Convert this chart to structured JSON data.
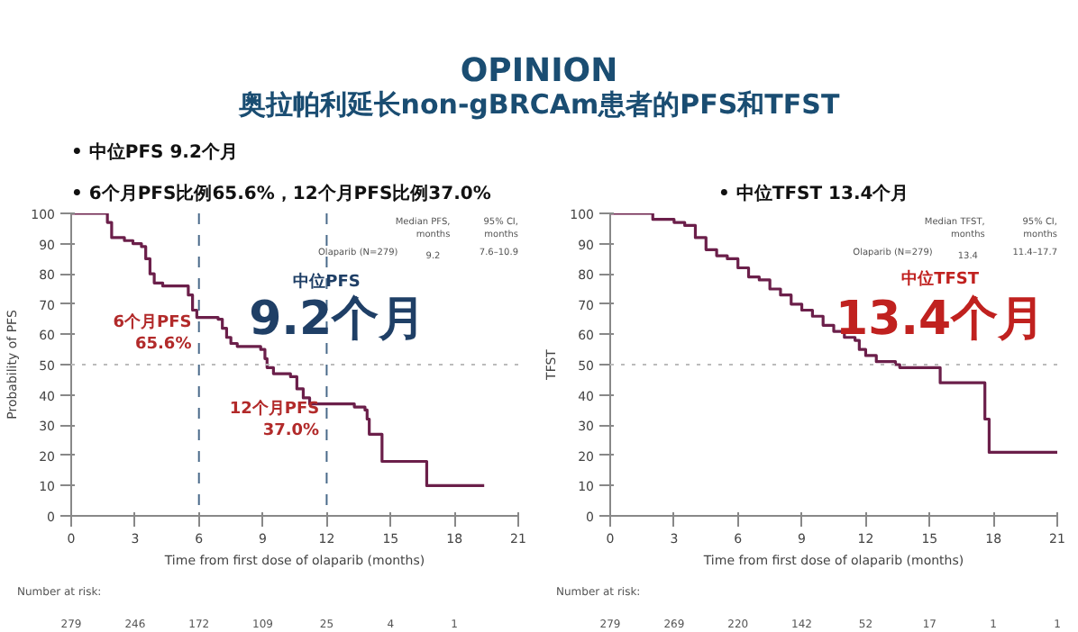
{
  "chart_data": [
    {
      "type": "step",
      "title": "OPINION",
      "subtitle": "奥拉帕利延长non-gBRCAm患者的PFS和TFST",
      "xlabel": "Time from first dose of olaparib (months)",
      "ylabel": "Probability of PFS",
      "xlim": [
        0,
        21
      ],
      "ylim": [
        0,
        100
      ],
      "xticks": [
        0,
        3,
        6,
        9,
        12,
        15,
        18,
        21
      ],
      "yticks": [
        0,
        10,
        20,
        30,
        40,
        50,
        60,
        70,
        80,
        90,
        100
      ],
      "grid": false,
      "series": [
        {
          "color": "#6b1f4a",
          "x": [
            0,
            1.5,
            1.7,
            1.9,
            2.5,
            2.9,
            3.3,
            3.5,
            3.7,
            3.9,
            4.3,
            5.3,
            5.5,
            5.7,
            5.9,
            6.9,
            7.1,
            7.3,
            7.5,
            7.8,
            8.9,
            9.1,
            9.2,
            9.5,
            10.3,
            10.6,
            10.9,
            11.2,
            12,
            13.3,
            13.8,
            13.9,
            14.0,
            14.5,
            14.6,
            16.6,
            16.7,
            19.4
          ],
          "values": [
            100,
            100,
            97,
            92,
            91,
            90,
            89,
            85,
            80,
            77,
            76,
            76,
            73,
            68,
            65.6,
            65,
            62,
            59,
            57,
            56,
            55,
            52,
            49,
            47,
            46,
            42,
            39,
            37,
            37,
            36,
            35,
            32,
            27,
            27,
            18,
            18,
            10,
            10
          ]
        }
      ],
      "ref_lines": [
        {
          "axis": "y",
          "value": 50,
          "color": "#bbbbbb",
          "line_style": "dotted"
        },
        {
          "axis": "x",
          "value": 6,
          "color": "#4a6a8a",
          "line_style": "dashed"
        },
        {
          "axis": "x",
          "value": 12,
          "color": "#4a6a8a",
          "line_style": "dashed"
        }
      ],
      "annotations": [
        "•  中位PFS 9.2个月",
        "•  6个月PFS比例65.6%，12个月PFS比例37.0%",
        "Median PFS, months",
        "95% CI, months",
        "Olaparib (N=279)",
        "9.2",
        "7.6–10.9",
        "中位PFS",
        "9.2个月",
        "Number at risk:",
        "279",
        "246",
        "172",
        "109",
        "25",
        "4",
        "1",
        {
          "text": "6个月PFS 65.6%",
          "x": 6,
          "y": 65.6
        },
        {
          "text": "12个月PFS 37.0%",
          "x": 12,
          "y": 37.0
        }
      ]
    },
    {
      "type": "step",
      "xlabel": "Time from first dose of olaparib (months)",
      "ylabel": "TFST",
      "xlim": [
        0,
        21
      ],
      "ylim": [
        0,
        100
      ],
      "xticks": [
        0,
        3,
        6,
        9,
        12,
        15,
        18,
        21
      ],
      "yticks": [
        0,
        10,
        20,
        30,
        40,
        50,
        60,
        70,
        80,
        90,
        100
      ],
      "grid": false,
      "series": [
        {
          "color": "#6b1f4a",
          "x": [
            0,
            1.5,
            2,
            3,
            3.5,
            4,
            4.5,
            5,
            5.5,
            6,
            6.5,
            7,
            7.5,
            8,
            8.5,
            9,
            9.5,
            10,
            10.5,
            11,
            11.5,
            11.7,
            12,
            12.5,
            13,
            13.4,
            13.6,
            15.3,
            15.5,
            17.5,
            17.6,
            17.8,
            21
          ],
          "values": [
            100,
            100,
            98,
            97,
            96,
            92,
            88,
            86,
            85,
            82,
            79,
            78,
            75,
            73,
            70,
            68,
            66,
            63,
            61,
            59,
            58,
            55,
            53,
            51,
            51,
            50,
            49,
            49,
            44,
            44,
            32,
            21,
            21
          ]
        }
      ],
      "ref_lines": [
        {
          "axis": "y",
          "value": 50,
          "color": "#bbbbbb",
          "line_style": "dotted"
        }
      ],
      "annotations": [
        "•  中位TFST 13.4个月",
        "Median TFST, months",
        "95% CI, months",
        "Olaparib (N=279)",
        "13.4",
        "11.4–17.7",
        "中位TFST",
        "13.4个月",
        "Number at risk:",
        "279",
        "269",
        "220",
        "142",
        "52",
        "17",
        "1",
        "1"
      ]
    }
  ]
}
